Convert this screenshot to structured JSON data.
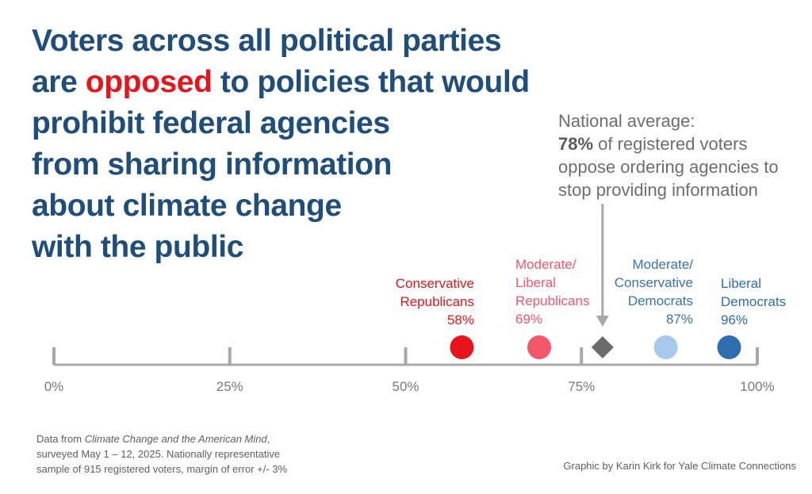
{
  "title": {
    "line1": "Voters across all political parties",
    "line2_pre": "are ",
    "line2_highlight": "opposed",
    "line2_post": " to policies that would",
    "line3": "prohibit federal agencies",
    "line4": "from sharing information",
    "line5": "about climate change",
    "line6": "with the public"
  },
  "national_average": {
    "line1": "National average:",
    "pct": "78%",
    "line2_rest": " of registered voters",
    "line3": "oppose ordering agencies to",
    "line4": "stop providing information"
  },
  "chart_data": {
    "type": "dot",
    "xlim": [
      0,
      100
    ],
    "ticks": [
      0,
      25,
      50,
      75,
      100
    ],
    "tick_labels": [
      "0%",
      "25%",
      "50%",
      "75%",
      "100%"
    ],
    "national_average": 78,
    "groups": [
      {
        "name_lines": [
          "Conservative",
          "Republicans"
        ],
        "value": 58,
        "label": "58%",
        "color": "#e8141b",
        "align": "right"
      },
      {
        "name_lines": [
          "Moderate/",
          "Liberal",
          "Republicans"
        ],
        "value": 69,
        "label": "69%",
        "color": "#f4566a",
        "align": "left"
      },
      {
        "name_lines": [
          "Moderate/",
          "Conservative",
          "Democrats"
        ],
        "value": 87,
        "label": "87%",
        "color": "#a7c9ec",
        "text_color": "#3a72b0",
        "align": "right"
      },
      {
        "name_lines": [
          "Liberal",
          "Democrats"
        ],
        "value": 96,
        "label": "96%",
        "color": "#2e6db0",
        "align": "left"
      }
    ],
    "axis_color": "#a8a8a8",
    "average_marker_color": "#6b6b6b"
  },
  "source": {
    "line1_pre": "Data from ",
    "line1_italic": "Climate Change and the American Mind",
    "line1_post": ",",
    "line2": "surveyed May 1 – 12, 2025. Nationally representative",
    "line3": "sample of 915 registered voters, margin of error +/- 3%"
  },
  "credit": "Graphic by Karin Kirk for Yale Climate Connections"
}
